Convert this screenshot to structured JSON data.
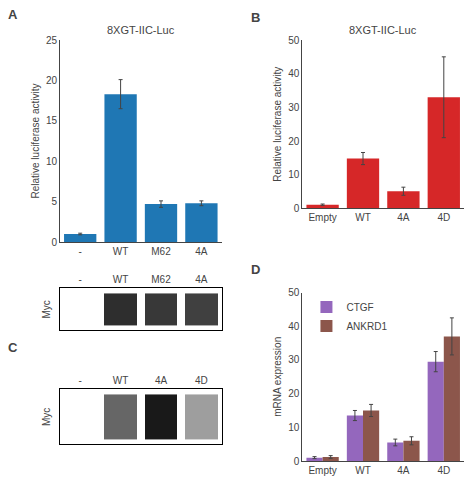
{
  "chart_data": [
    {
      "type": "bar",
      "title": "8XGT-IIC-Luc",
      "annotations": [
        "A"
      ],
      "categories": [
        "-",
        "WT",
        "M62",
        "4A"
      ],
      "values": [
        1.0,
        18.3,
        4.7,
        4.8
      ],
      "errors": [
        0.1,
        1.8,
        0.4,
        0.3
      ],
      "ylabel": "Relative luciferase activity",
      "ylim": [
        0,
        25
      ],
      "yticks": [
        0,
        5,
        10,
        15,
        20,
        25
      ],
      "grid": false
    },
    {
      "type": "heatmap",
      "categories": [
        "-",
        "WT",
        "M62",
        "4A"
      ],
      "values": [
        null,
        0.82,
        0.78,
        0.75
      ],
      "ylabel": "Myc",
      "tick_labels": "x"
    },
    {
      "type": "heatmap",
      "annotations": [
        "C"
      ],
      "categories": [
        "-",
        "WT",
        "4A",
        "4D"
      ],
      "values": [
        null,
        0.6,
        0.9,
        0.38
      ],
      "ylabel": "Myc",
      "tick_labels": "x"
    },
    {
      "type": "bar",
      "title": "8XGT-IIC-Luc",
      "annotations": [
        "B"
      ],
      "categories": [
        "Empty",
        "WT",
        "4A",
        "4D"
      ],
      "values": [
        1.1,
        14.8,
        5.1,
        33.0
      ],
      "errors": [
        0.2,
        1.8,
        1.2,
        12.0
      ],
      "ylabel": "Relative luciferase activity",
      "ylim": [
        0,
        50
      ],
      "yticks": [
        0,
        10,
        20,
        30,
        40,
        50
      ],
      "grid": false
    },
    {
      "type": "bar",
      "annotations": [
        "D"
      ],
      "categories": [
        "Empty",
        "WT",
        "4A",
        "4D"
      ],
      "series": [
        {
          "name": "CTGF",
          "values": [
            1.0,
            13.5,
            5.5,
            29.5
          ],
          "errors": [
            0.3,
            1.5,
            1.0,
            3.0
          ]
        },
        {
          "name": "ANKRD1",
          "values": [
            1.2,
            15.0,
            6.0,
            37.0
          ],
          "errors": [
            0.4,
            1.8,
            1.2,
            5.5
          ]
        }
      ],
      "ylabel": "mRNA expression",
      "ylim": [
        0,
        50
      ],
      "yticks": [
        0,
        10,
        20,
        30,
        40,
        50
      ],
      "grid": false,
      "legend": "upper left"
    }
  ]
}
